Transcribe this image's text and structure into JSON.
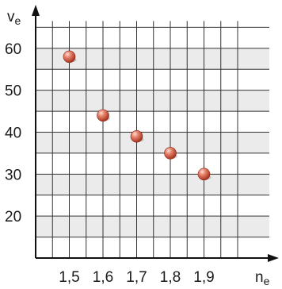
{
  "chart_data": {
    "type": "scatter",
    "title": "",
    "xlabel": "n",
    "xlabel_subscript": "e",
    "ylabel": "v",
    "ylabel_subscript": "e",
    "x": [
      1.5,
      1.6,
      1.7,
      1.8,
      1.9
    ],
    "y": [
      58,
      44,
      39,
      35,
      30
    ],
    "x_tick_labels": [
      "1,5",
      "1,6",
      "1,7",
      "1,8",
      "1,9"
    ],
    "y_tick_labels": [
      "20",
      "30",
      "40",
      "50",
      "60"
    ],
    "xlim": [
      1.4,
      2.0
    ],
    "ylim": [
      10,
      70
    ],
    "grid": true,
    "marker_color": "#d9604a",
    "band_color": "#ebebeb"
  }
}
